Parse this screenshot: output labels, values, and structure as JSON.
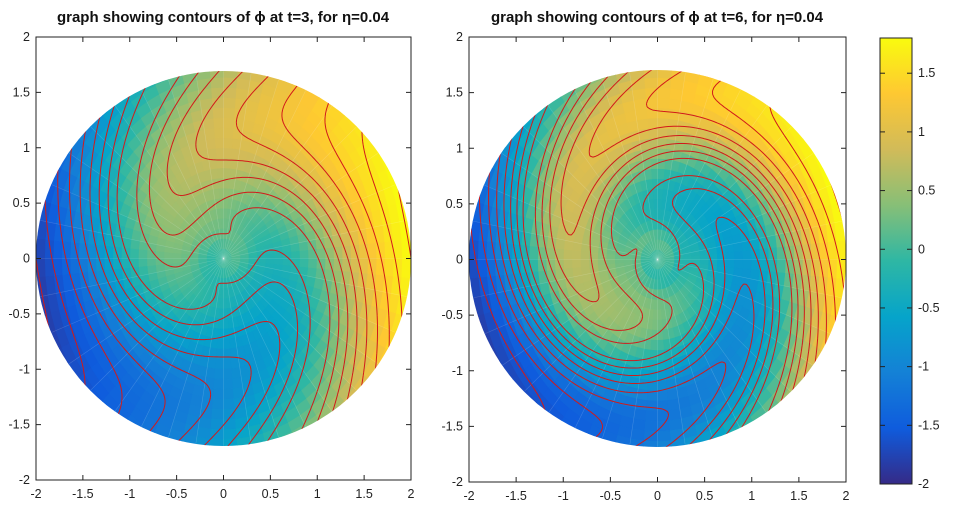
{
  "chart_data": [
    {
      "type": "contour",
      "title": "graph showing contours of  ϕ at t=3, for  η=0.04",
      "xlabel": "",
      "ylabel": "",
      "xlim": [
        -2,
        2
      ],
      "ylim": [
        -2,
        2
      ],
      "xticks": [
        "-2",
        "-1.5",
        "-1",
        "-0.5",
        "0",
        "0.5",
        "1",
        "1.5",
        "2"
      ],
      "yticks": [
        "2",
        "1.5",
        "1",
        "0.5",
        "0",
        "-0.5",
        "-1",
        "-1.5",
        "-2"
      ],
      "domain": "disk of radius 2",
      "twist": 2.6,
      "fill": "parula colormap, value approximately equal to x",
      "contour_color": "#d11a1a",
      "contour_levels": [
        -1.8,
        -1.6,
        -1.4,
        -1.2,
        -1.0,
        -0.8,
        -0.6,
        -0.4,
        -0.2,
        0.2,
        0.4,
        0.6,
        0.8,
        1.0,
        1.2,
        1.4,
        1.6,
        1.8
      ],
      "grid": false
    },
    {
      "type": "contour",
      "title": "graph showing contours of  ϕ at t=6, for  η=0.04",
      "xlabel": "",
      "ylabel": "",
      "xlim": [
        -2,
        2
      ],
      "ylim": [
        -2,
        2
      ],
      "xticks": [
        "-2",
        "-1.5",
        "-1",
        "-0.5",
        "0",
        "0.5",
        "1",
        "1.5",
        "2"
      ],
      "yticks": [
        "2",
        "1.5",
        "1",
        "0.5",
        "0",
        "-0.5",
        "-1",
        "-1.5",
        "-2"
      ],
      "domain": "disk of radius 2",
      "twist": 4.6,
      "fill": "parula colormap, value approximately equal to x",
      "contour_color": "#d11a1a",
      "contour_levels": [
        -1.8,
        -1.6,
        -1.4,
        -1.2,
        -1.0,
        -0.8,
        -0.6,
        -0.4,
        -0.2,
        0.2,
        0.4,
        0.6,
        0.8,
        1.0,
        1.2,
        1.4,
        1.6,
        1.8
      ],
      "grid": false
    }
  ],
  "colorbar": {
    "range": [
      -2,
      1.8
    ],
    "ticks": [
      "1.5",
      "1",
      "0.5",
      "0",
      "-0.5",
      "-1",
      "-1.5",
      "-2"
    ],
    "tick_values": [
      1.5,
      1,
      0.5,
      0,
      -0.5,
      -1,
      -1.5,
      -2
    ],
    "colormap": "parula"
  },
  "colors": {
    "contour": "#d11a1a",
    "parula": [
      "#352a87",
      "#0f5cdd",
      "#1481d6",
      "#06a4ca",
      "#2eb7a4",
      "#87bf77",
      "#d1bb59",
      "#fec832",
      "#f9fb0e"
    ]
  }
}
